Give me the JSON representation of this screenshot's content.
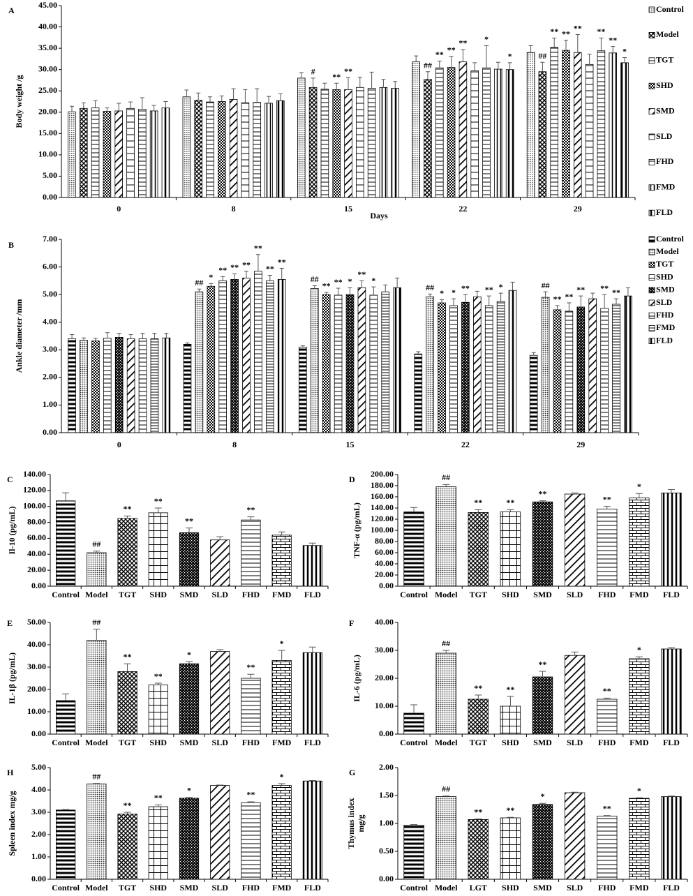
{
  "chart_data": [
    {
      "type": "grouped-bar",
      "panel": "A",
      "ylabel": "Body weight /g",
      "xlabel": "Days",
      "categories": [
        "0",
        "8",
        "15",
        "22",
        "29"
      ],
      "ylim": [
        0,
        45
      ],
      "yticks": [
        {
          "value": 0,
          "label": "0.00"
        },
        {
          "value": 5,
          "label": "5.00"
        },
        {
          "value": 10,
          "label": "10.00"
        },
        {
          "value": 15,
          "label": "15.00"
        },
        {
          "value": 20,
          "label": "20.00"
        },
        {
          "value": 25,
          "label": "25.00"
        },
        {
          "value": 30,
          "label": "30.00"
        },
        {
          "value": 35,
          "label": "35.00"
        },
        {
          "value": 40,
          "label": "40.00"
        },
        {
          "value": 45,
          "label": "45.00"
        }
      ],
      "hash_color": "#e00000",
      "star_color": "#e00000",
      "series": [
        {
          "name": "Control",
          "pattern": "fine-grid",
          "values": [
            20.1,
            23.6,
            28.0,
            31.8,
            34.0
          ],
          "errors": [
            1.3,
            1.6,
            1.3,
            1.4,
            1.6
          ],
          "markers": [
            null,
            null,
            null,
            null,
            null
          ]
        },
        {
          "name": "Model",
          "pattern": "xcross",
          "values": [
            20.9,
            22.8,
            25.8,
            27.7,
            29.5
          ],
          "errors": [
            1.3,
            1.7,
            2.2,
            1.8,
            2.2
          ],
          "markers": [
            null,
            null,
            "#",
            "##",
            "##"
          ]
        },
        {
          "name": "TGT",
          "pattern": "hlines",
          "values": [
            21.0,
            22.4,
            25.4,
            30.4,
            35.2
          ],
          "errors": [
            1.7,
            1.2,
            1.4,
            1.6,
            2.2
          ],
          "markers": [
            null,
            null,
            null,
            "**",
            "**"
          ]
        },
        {
          "name": "SHD",
          "pattern": "checker",
          "values": [
            20.2,
            22.5,
            25.3,
            30.5,
            34.5
          ],
          "errors": [
            0.8,
            1.3,
            1.5,
            2.6,
            2.4
          ],
          "markers": [
            null,
            null,
            "**",
            "**",
            "**"
          ]
        },
        {
          "name": "SMD",
          "pattern": "diag",
          "values": [
            20.3,
            23.0,
            25.3,
            31.8,
            34.0
          ],
          "errors": [
            1.8,
            2.5,
            2.8,
            2.9,
            4.2
          ],
          "markers": [
            null,
            null,
            "**",
            "**",
            "**"
          ]
        },
        {
          "name": "SLD",
          "pattern": "hlines-wide",
          "values": [
            20.9,
            22.2,
            25.8,
            29.7,
            31.2
          ],
          "errors": [
            1.5,
            3.1,
            2.4,
            1.9,
            2.4
          ],
          "markers": [
            null,
            null,
            null,
            null,
            null
          ]
        },
        {
          "name": "FHD",
          "pattern": "hlines",
          "values": [
            20.7,
            22.3,
            25.6,
            30.4,
            34.4
          ],
          "errors": [
            2.7,
            3.2,
            3.8,
            5.2,
            3.0
          ],
          "markers": [
            null,
            null,
            null,
            "*",
            "**"
          ]
        },
        {
          "name": "FMD",
          "pattern": "vlines-thin",
          "values": [
            20.3,
            22.1,
            25.8,
            30.1,
            33.9
          ],
          "errors": [
            1.3,
            1.6,
            1.9,
            1.6,
            1.5
          ],
          "markers": [
            null,
            null,
            null,
            null,
            "**"
          ]
        },
        {
          "name": "FLD",
          "pattern": "vlines",
          "values": [
            21.0,
            22.7,
            25.6,
            30.0,
            31.6
          ],
          "errors": [
            1.5,
            1.6,
            1.6,
            1.6,
            1.2
          ],
          "markers": [
            null,
            null,
            null,
            "*",
            "*"
          ]
        }
      ]
    },
    {
      "type": "grouped-bar",
      "panel": "B",
      "ylabel": "Ankle diameter /mm",
      "categories": [
        "0",
        "8",
        "15",
        "22",
        "29"
      ],
      "ylim": [
        0,
        7
      ],
      "yticks": [
        {
          "value": 0,
          "label": "0.00"
        },
        {
          "value": 1,
          "label": "1.00"
        },
        {
          "value": 2,
          "label": "2.00"
        },
        {
          "value": 3,
          "label": "3.00"
        },
        {
          "value": 4,
          "label": "4.00"
        },
        {
          "value": 5,
          "label": "5.00"
        },
        {
          "value": 6,
          "label": "6.00"
        },
        {
          "value": 7,
          "label": "7.00"
        }
      ],
      "hash_color": "#e00000",
      "star_color": "#000000",
      "series": [
        {
          "name": "Control",
          "pattern": "hlines-bold",
          "values": [
            3.4,
            3.2,
            3.1,
            2.85,
            2.8
          ],
          "errors": [
            0.15,
            0.05,
            0.05,
            0.08,
            0.1
          ],
          "markers": [
            null,
            null,
            null,
            null,
            null
          ]
        },
        {
          "name": "Model",
          "pattern": "dots",
          "values": [
            3.35,
            5.1,
            5.22,
            4.92,
            4.9
          ],
          "errors": [
            0.08,
            0.1,
            0.1,
            0.1,
            0.2
          ],
          "markers": [
            null,
            "##",
            "##",
            "##",
            "##"
          ]
        },
        {
          "name": "TGT",
          "pattern": "checker",
          "values": [
            3.32,
            5.3,
            5.0,
            4.7,
            4.45
          ],
          "errors": [
            0.1,
            0.1,
            0.08,
            0.12,
            0.15
          ],
          "markers": [
            null,
            "*",
            "**",
            "*",
            "**"
          ]
        },
        {
          "name": "SHD",
          "pattern": "hlines",
          "values": [
            3.42,
            5.5,
            4.98,
            4.6,
            4.4
          ],
          "errors": [
            0.2,
            0.15,
            0.25,
            0.25,
            0.3
          ],
          "markers": [
            null,
            "**",
            "**",
            "*",
            "**"
          ]
        },
        {
          "name": "SMD",
          "pattern": "checker-dark",
          "values": [
            3.45,
            5.55,
            5.0,
            4.72,
            4.55
          ],
          "errors": [
            0.15,
            0.2,
            0.25,
            0.28,
            0.4
          ],
          "markers": [
            null,
            "**",
            "*",
            "**",
            "**"
          ]
        },
        {
          "name": "SLD",
          "pattern": "diag",
          "values": [
            3.4,
            5.6,
            5.25,
            4.92,
            4.85
          ],
          "errors": [
            0.15,
            0.25,
            0.25,
            0.2,
            0.2
          ],
          "markers": [
            null,
            "**",
            "**",
            null,
            null
          ]
        },
        {
          "name": "FHD",
          "pattern": "hlines",
          "values": [
            3.4,
            5.85,
            4.98,
            4.6,
            4.5
          ],
          "errors": [
            0.2,
            0.6,
            0.3,
            0.35,
            0.5
          ],
          "markers": [
            null,
            "**",
            "*",
            "**",
            "**"
          ]
        },
        {
          "name": "FMD",
          "pattern": "hlines-dense",
          "values": [
            3.4,
            5.5,
            5.1,
            4.75,
            4.65
          ],
          "errors": [
            0.2,
            0.2,
            0.25,
            0.3,
            0.2
          ],
          "markers": [
            null,
            "**",
            null,
            "*",
            "**"
          ]
        },
        {
          "name": "FLD",
          "pattern": "vlines",
          "values": [
            3.43,
            5.55,
            5.25,
            5.15,
            4.95
          ],
          "errors": [
            0.17,
            0.4,
            0.35,
            0.3,
            0.3
          ],
          "markers": [
            null,
            "**",
            null,
            null,
            null
          ]
        }
      ]
    },
    {
      "type": "bar",
      "panel": "C",
      "ylabel": "Il-10 (pg/mL)",
      "categories": [
        "Control",
        "Model",
        "TGT",
        "SHD",
        "SMD",
        "SLD",
        "FHD",
        "FMD",
        "FLD"
      ],
      "ylim": [
        0,
        140
      ],
      "yticks": [
        {
          "value": 0,
          "label": "0.00"
        },
        {
          "value": 20,
          "label": "20.00"
        },
        {
          "value": 40,
          "label": "40.00"
        },
        {
          "value": 60,
          "label": "60.00"
        },
        {
          "value": 80,
          "label": "80.00"
        },
        {
          "value": 100,
          "label": "100.00"
        },
        {
          "value": 120,
          "label": "120.00"
        },
        {
          "value": 140,
          "label": "140.00"
        }
      ],
      "hash_color": "#e00000",
      "star_color": "#000000",
      "patterns": [
        "hlines-bold",
        "dots",
        "xcross",
        "grid",
        "checker-dark",
        "diag",
        "hlines",
        "brick",
        "vlines"
      ],
      "values": [
        107,
        42,
        85,
        92,
        67,
        58,
        83,
        64,
        51
      ],
      "errors": [
        10,
        2,
        3,
        6,
        6,
        4,
        4,
        4,
        3
      ],
      "markers": [
        null,
        "##",
        "**",
        "**",
        "**",
        null,
        "**",
        null,
        null
      ]
    },
    {
      "type": "bar",
      "panel": "D",
      "ylabel": "TNF-α  (pg/mL)",
      "categories": [
        "Control",
        "Model",
        "TGT",
        "SHD",
        "SMD",
        "SLD",
        "FHD",
        "FMD",
        "FLD"
      ],
      "ylim": [
        0,
        200
      ],
      "yticks": [
        {
          "value": 0,
          "label": "0.00"
        },
        {
          "value": 20,
          "label": "20.00"
        },
        {
          "value": 40,
          "label": "40.00"
        },
        {
          "value": 60,
          "label": "60.00"
        },
        {
          "value": 80,
          "label": "80.00"
        },
        {
          "value": 100,
          "label": "100.00"
        },
        {
          "value": 120,
          "label": "120.00"
        },
        {
          "value": 140,
          "label": "140.00"
        },
        {
          "value": 160,
          "label": "160.00"
        },
        {
          "value": 180,
          "label": "180.00"
        },
        {
          "value": 200,
          "label": "200.00"
        }
      ],
      "hash_color": "#e00000",
      "star_color": "#000000",
      "patterns": [
        "hlines-bold",
        "dots",
        "xcross",
        "grid",
        "checker-dark",
        "diag",
        "hlines",
        "brick",
        "vlines"
      ],
      "values": [
        133,
        178,
        132,
        133,
        151,
        165,
        138,
        158,
        167
      ],
      "errors": [
        8,
        4,
        5,
        4,
        2,
        2,
        5,
        8,
        6
      ],
      "markers": [
        null,
        "##",
        "**",
        "**",
        "**",
        null,
        "**",
        "*",
        null
      ]
    },
    {
      "type": "bar",
      "panel": "E",
      "ylabel": "IL-1β (pg/mL)",
      "categories": [
        "Control",
        "Model",
        "TGT",
        "SHD",
        "SMD",
        "SLD",
        "FHD",
        "FMD",
        "FLD"
      ],
      "ylim": [
        0,
        50
      ],
      "yticks": [
        {
          "value": 0,
          "label": "0.00"
        },
        {
          "value": 10,
          "label": "10.00"
        },
        {
          "value": 20,
          "label": "20.00"
        },
        {
          "value": 30,
          "label": "30.00"
        },
        {
          "value": 40,
          "label": "40.00"
        },
        {
          "value": 50,
          "label": "50.00"
        }
      ],
      "hash_color": "#e00000",
      "star_color": "#000000",
      "patterns": [
        "hlines-bold",
        "dots",
        "xcross",
        "grid",
        "checker-dark",
        "diag",
        "hlines",
        "brick",
        "vlines"
      ],
      "values": [
        15,
        42,
        28,
        22,
        31.5,
        37,
        25,
        33,
        36.5
      ],
      "errors": [
        3,
        5,
        3.5,
        0.8,
        1,
        0.8,
        1.8,
        4.5,
        2.5
      ],
      "markers": [
        null,
        "##",
        "**",
        "**",
        "*",
        null,
        "**",
        "*",
        null
      ]
    },
    {
      "type": "bar",
      "panel": "F",
      "ylabel": "IL-6 (pg/mL)",
      "categories": [
        "Control",
        "Model",
        "TGT",
        "SHD",
        "SMD",
        "SLD",
        "FHD",
        "FMD",
        "FLD"
      ],
      "ylim": [
        0,
        40
      ],
      "yticks": [
        {
          "value": 0,
          "label": "0.00"
        },
        {
          "value": 10,
          "label": "10.00"
        },
        {
          "value": 20,
          "label": "20.00"
        },
        {
          "value": 30,
          "label": "30.00"
        },
        {
          "value": 40,
          "label": "40.00"
        }
      ],
      "hash_color": "#e00000",
      "star_color": "#000000",
      "patterns": [
        "hlines-bold",
        "dots",
        "xcross",
        "grid",
        "checker-dark",
        "diag",
        "hlines",
        "brick",
        "vlines"
      ],
      "values": [
        7.5,
        29,
        12.5,
        10,
        20.5,
        28.2,
        12.5,
        27,
        30.5
      ],
      "errors": [
        3,
        1,
        1.5,
        3.5,
        2,
        1.2,
        0.4,
        0.7,
        0.5
      ],
      "markers": [
        null,
        "##",
        "**",
        "**",
        "**",
        null,
        "**",
        "*",
        null
      ]
    },
    {
      "type": "bar",
      "panel": "H",
      "ylabel": "Spleen index mg/g",
      "categories": [
        "Control",
        "Model",
        "TGT",
        "SHD",
        "SMD",
        "SLD",
        "FHD",
        "FMD",
        "FLD"
      ],
      "ylim": [
        0,
        5
      ],
      "yticks": [
        {
          "value": 0,
          "label": "0.00"
        },
        {
          "value": 1,
          "label": "1.00"
        },
        {
          "value": 2,
          "label": "2.00"
        },
        {
          "value": 3,
          "label": "3.00"
        },
        {
          "value": 4,
          "label": "4.00"
        },
        {
          "value": 5,
          "label": "5.00"
        }
      ],
      "hash_color": "#e00000",
      "star_color": "#000000",
      "patterns": [
        "hlines-bold",
        "dots",
        "xcross",
        "grid",
        "checker-dark",
        "diag",
        "hlines",
        "brick",
        "vlines"
      ],
      "values": [
        3.1,
        4.27,
        2.92,
        3.25,
        3.63,
        4.2,
        3.43,
        4.2,
        4.4
      ],
      "errors": [
        0.02,
        0.02,
        0.08,
        0.08,
        0.03,
        0.02,
        0.04,
        0.08,
        0.02
      ],
      "markers": [
        null,
        "##",
        "**",
        "**",
        "*",
        null,
        "**",
        "*",
        null
      ]
    },
    {
      "type": "bar",
      "panel": "G",
      "ylabel": [
        "Thymus index",
        "mg/g"
      ],
      "categories": [
        "Control",
        "Model",
        "LGT",
        "SHD",
        "SMD",
        "SLD",
        "FHD",
        "FMD",
        "FLD"
      ],
      "ylim": [
        0,
        2
      ],
      "yticks": [
        {
          "value": 0,
          "label": "0.00"
        },
        {
          "value": 0.5,
          "label": "0.50"
        },
        {
          "value": 1,
          "label": "1.00"
        },
        {
          "value": 1.5,
          "label": "1.50"
        },
        {
          "value": 2,
          "label": "2.00"
        }
      ],
      "hash_color": "#e00000",
      "star_color": "#000000",
      "patterns": [
        "hlines-bold",
        "dots",
        "xcross",
        "grid",
        "checker-dark",
        "diag",
        "hlines",
        "brick",
        "vlines"
      ],
      "values": [
        0.97,
        1.48,
        1.07,
        1.1,
        1.34,
        1.55,
        1.13,
        1.45,
        1.48
      ],
      "errors": [
        0.01,
        0.01,
        0.01,
        0.01,
        0.02,
        0.01,
        0.01,
        0.01,
        0.01
      ],
      "markers": [
        null,
        "##",
        "**",
        "**",
        "*",
        null,
        "**",
        "*",
        null
      ]
    }
  ]
}
